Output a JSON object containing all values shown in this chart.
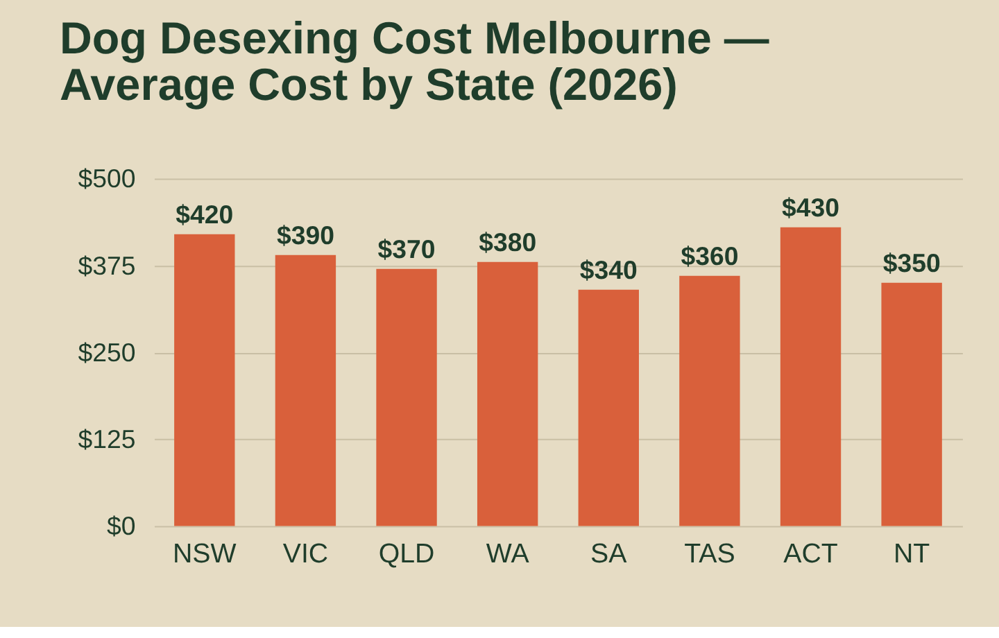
{
  "chart_data": {
    "type": "bar",
    "title": [
      "Dog Desexing Cost Melbourne —",
      "Average Cost by State (2026)"
    ],
    "categories": [
      "NSW",
      "VIC",
      "QLD",
      "WA",
      "SA",
      "TAS",
      "ACT",
      "NT"
    ],
    "values": [
      420,
      390,
      370,
      380,
      340,
      360,
      430,
      350
    ],
    "value_labels": [
      "$420",
      "$390",
      "$370",
      "$380",
      "$340",
      "$360",
      "$430",
      "$350"
    ],
    "color": "#d9603b",
    "ylim": [
      0,
      500
    ],
    "yticks": [
      {
        "value": 0,
        "label": "$0"
      },
      {
        "value": 125,
        "label": "$125"
      },
      {
        "value": 250,
        "label": "$250"
      },
      {
        "value": 375,
        "label": "$375"
      },
      {
        "value": 500,
        "label": "$500"
      }
    ],
    "grid": "y"
  }
}
